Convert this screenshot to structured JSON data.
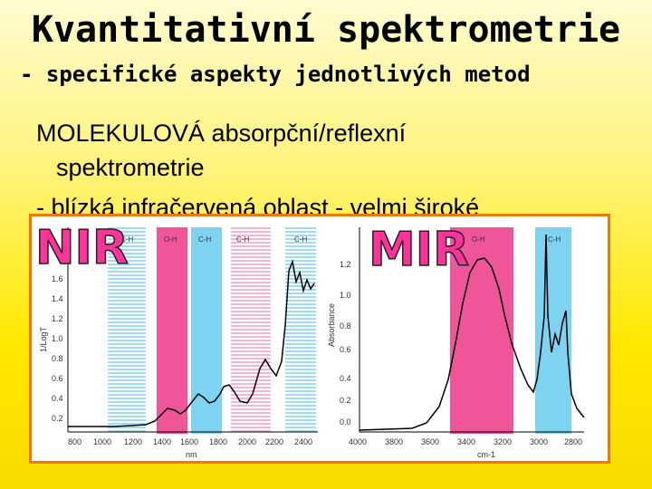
{
  "slide": {
    "title": "Kvantitativní spektrometrie",
    "subtitle": "- specifické aspekty jednotlivých metod",
    "body_line1": "MOLEKULOVÁ absorpční/reflexní",
    "body_line2": "spektrometrie",
    "body_line3": "- blízká infračervená oblast - velmi široké"
  },
  "nir_panel": {
    "logo": "NIR",
    "ylabel": "1/LogT",
    "xlabel": "nm",
    "y_ticks": [
      "1.6",
      "1.4",
      "1.2",
      "1.0",
      "0.8",
      "0.6",
      "0.4",
      "0.2"
    ],
    "x_ticks": [
      "800",
      "1000",
      "1200",
      "1400",
      "1600",
      "1800",
      "2000",
      "2200",
      "2400"
    ],
    "bands": [
      {
        "label": "C-H",
        "color": "#8fd8f2",
        "style": "hatched"
      },
      {
        "label": "O-H",
        "color": "#f0559a",
        "style": "solid"
      },
      {
        "label": "C-H",
        "color": "#7dd3f0",
        "style": "solid"
      },
      {
        "label": "C-H",
        "color": "#f5a6cc",
        "style": "hatched"
      },
      {
        "label": "C-H",
        "color": "#8fd8f2",
        "style": "hatched"
      }
    ]
  },
  "mir_panel": {
    "logo": "MIR",
    "ylabel": "Absorbance",
    "xlabel": "cm-1",
    "y_ticks": [
      "1.2",
      "1.0",
      "0.8",
      "0.6",
      "0.4",
      "0.2",
      "0.0"
    ],
    "x_ticks": [
      "4000",
      "3800",
      "3600",
      "3400",
      "3200",
      "3000",
      "2800"
    ],
    "bands": [
      {
        "label": "O-H",
        "color": "#f0559a",
        "style": "solid"
      },
      {
        "label": "C-H",
        "color": "#7dd3f0",
        "style": "solid"
      }
    ]
  },
  "colors": {
    "frame_border": "#f07800",
    "body_text": "#000000",
    "link_text": "#0000cc",
    "logo_fill": "#ff3399",
    "logo_stroke": "#222222"
  }
}
